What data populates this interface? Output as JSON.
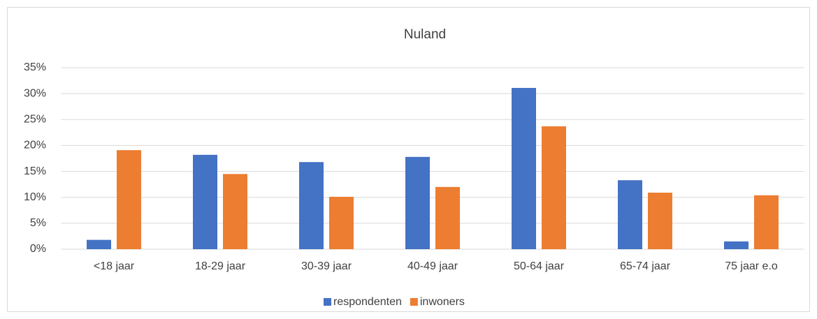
{
  "chart_data": {
    "type": "bar",
    "title": "Nuland",
    "categories": [
      "<18 jaar",
      "18-29 jaar",
      "30-39 jaar",
      "40-49 jaar",
      "50-64 jaar",
      "65-74 jaar",
      "75 jaar e.o"
    ],
    "series": [
      {
        "name": "respondenten",
        "color": "#4472c4",
        "values": [
          1.8,
          18.2,
          16.8,
          17.8,
          31.1,
          13.3,
          1.5
        ]
      },
      {
        "name": "inwoners",
        "color": "#ed7d31",
        "values": [
          19.1,
          14.5,
          10.1,
          12.0,
          23.7,
          10.9,
          10.4
        ]
      }
    ],
    "ylim": [
      0,
      35
    ],
    "yticks": [
      {
        "value": 0,
        "label": "0%"
      },
      {
        "value": 5,
        "label": "5%"
      },
      {
        "value": 10,
        "label": "10%"
      },
      {
        "value": 15,
        "label": "15%"
      },
      {
        "value": 20,
        "label": "20%"
      },
      {
        "value": 25,
        "label": "25%"
      },
      {
        "value": 30,
        "label": "30%"
      },
      {
        "value": 35,
        "label": "35%"
      }
    ],
    "grid": true,
    "legend": "bottom"
  }
}
